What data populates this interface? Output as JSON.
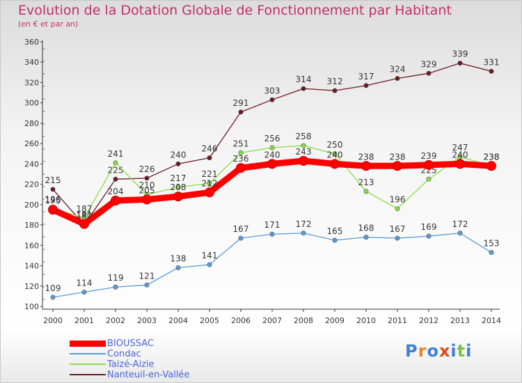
{
  "title": "Evolution de la Dotation Globale de Fonctionnement par Habitant",
  "subtitle": "(en € et par an)",
  "logo": {
    "text": "Proxiti"
  },
  "chart_data": {
    "type": "line",
    "x": [
      "2000",
      "2001",
      "2002",
      "2003",
      "2004",
      "2005",
      "2006",
      "2007",
      "2008",
      "2009",
      "2010",
      "2011",
      "2012",
      "2013",
      "2014"
    ],
    "ylim": [
      100,
      360
    ],
    "yticks": [
      100,
      120,
      140,
      160,
      180,
      200,
      220,
      240,
      260,
      280,
      300,
      320,
      340,
      360
    ],
    "grid": false,
    "legend_position": "bottom-left",
    "series": [
      {
        "name": "Nanteuil-en-Vallée",
        "color": "#6b1a22",
        "values": [
          215,
          180,
          225,
          226,
          240,
          246,
          291,
          303,
          314,
          312,
          317,
          324,
          329,
          339,
          331
        ]
      },
      {
        "name": "Taizé-Aizie",
        "color": "#88dd44",
        "values": [
          196,
          187,
          241,
          210,
          217,
          221,
          251,
          256,
          258,
          250,
          213,
          196,
          225,
          247,
          238
        ]
      },
      {
        "name": "Condac",
        "color": "#5b9bd5",
        "values": [
          109,
          114,
          119,
          121,
          138,
          141,
          167,
          171,
          172,
          165,
          168,
          167,
          169,
          172,
          153
        ]
      },
      {
        "name": "BIOUSSAC",
        "color": "#ff0000",
        "values": [
          195,
          181,
          204,
          205,
          208,
          212,
          236,
          240,
          243,
          240,
          238,
          238,
          239,
          240,
          238
        ]
      }
    ]
  }
}
